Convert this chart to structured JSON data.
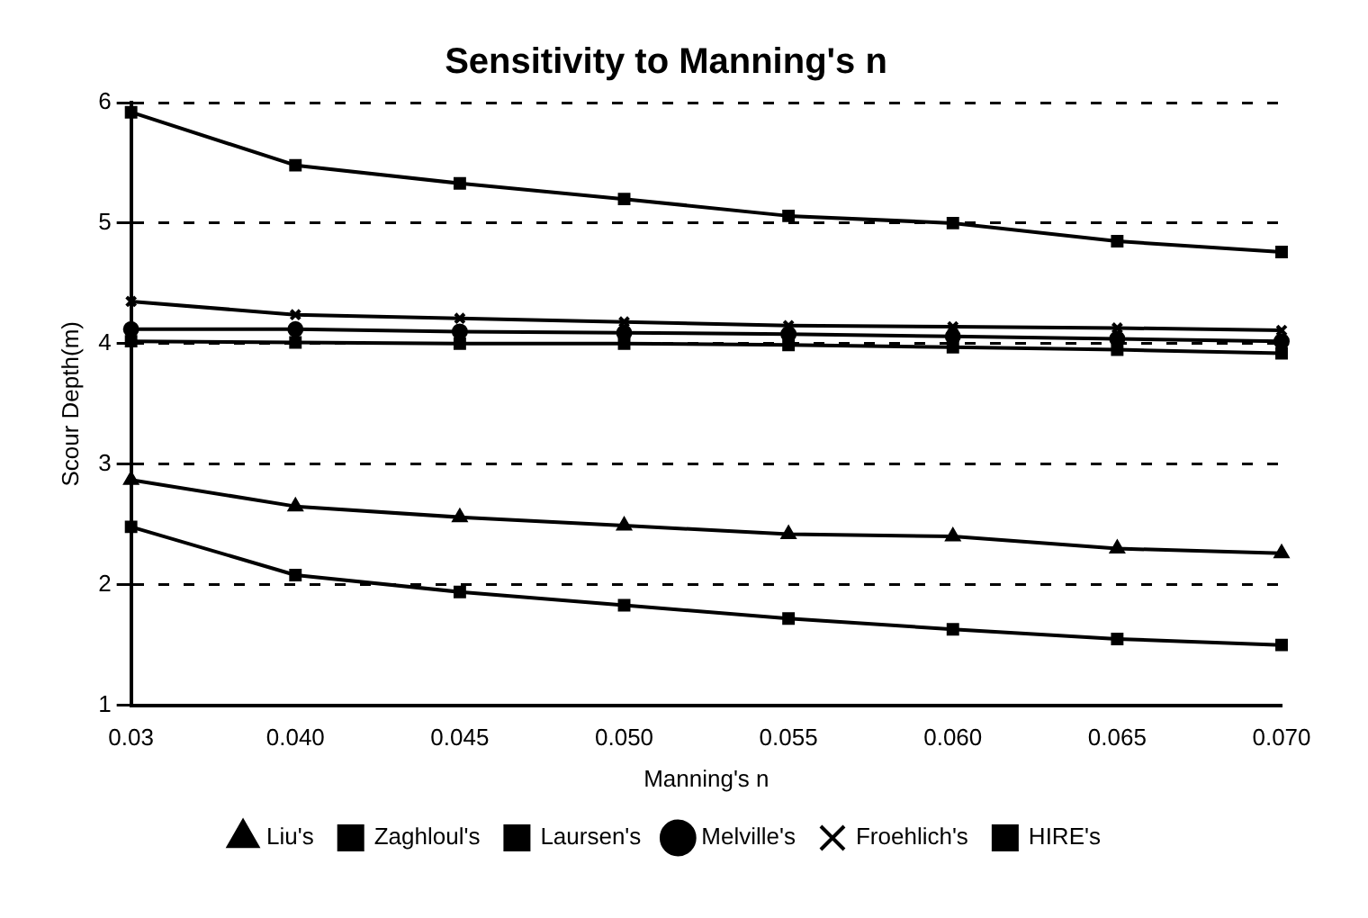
{
  "chart_data": {
    "type": "line",
    "title": "Sensitivity to Manning's n",
    "xlabel": "Manning's n",
    "ylabel": "Scour Depth(m)",
    "categories": [
      "0.03",
      "0.040",
      "0.045",
      "0.050",
      "0.055",
      "0.060",
      "0.065",
      "0.070"
    ],
    "series": [
      {
        "name": "Liu's",
        "color": "#000000",
        "marker": "triangle",
        "values": [
          2.87,
          2.65,
          2.56,
          2.49,
          2.42,
          2.4,
          2.3,
          2.26
        ]
      },
      {
        "name": "Zaghloul's",
        "color": "#000000",
        "marker": "square",
        "values": [
          2.48,
          2.08,
          1.94,
          1.83,
          1.72,
          1.63,
          1.55,
          1.5
        ]
      },
      {
        "name": "Laursen's",
        "color": "#000000",
        "marker": "square",
        "values": [
          4.02,
          4.01,
          4.0,
          4.0,
          3.99,
          3.97,
          3.95,
          3.92
        ]
      },
      {
        "name": "Melville's",
        "color": "#000000",
        "marker": "circle",
        "values": [
          4.12,
          4.12,
          4.1,
          4.09,
          4.08,
          4.06,
          4.04,
          4.02
        ]
      },
      {
        "name": "Froehlich's",
        "color": "#000000",
        "marker": "cross",
        "values": [
          4.35,
          4.24,
          4.21,
          4.18,
          4.15,
          4.14,
          4.13,
          4.11
        ]
      },
      {
        "name": "HIRE's",
        "color": "#000000",
        "marker": "square",
        "values": [
          5.92,
          5.48,
          5.33,
          5.2,
          5.06,
          5.0,
          4.85,
          4.76
        ]
      }
    ],
    "ylim": [
      1,
      6
    ],
    "yticks": [
      1,
      2,
      3,
      4,
      5,
      6
    ],
    "grid": "y",
    "legend": "bottom",
    "line_style": "solid"
  }
}
